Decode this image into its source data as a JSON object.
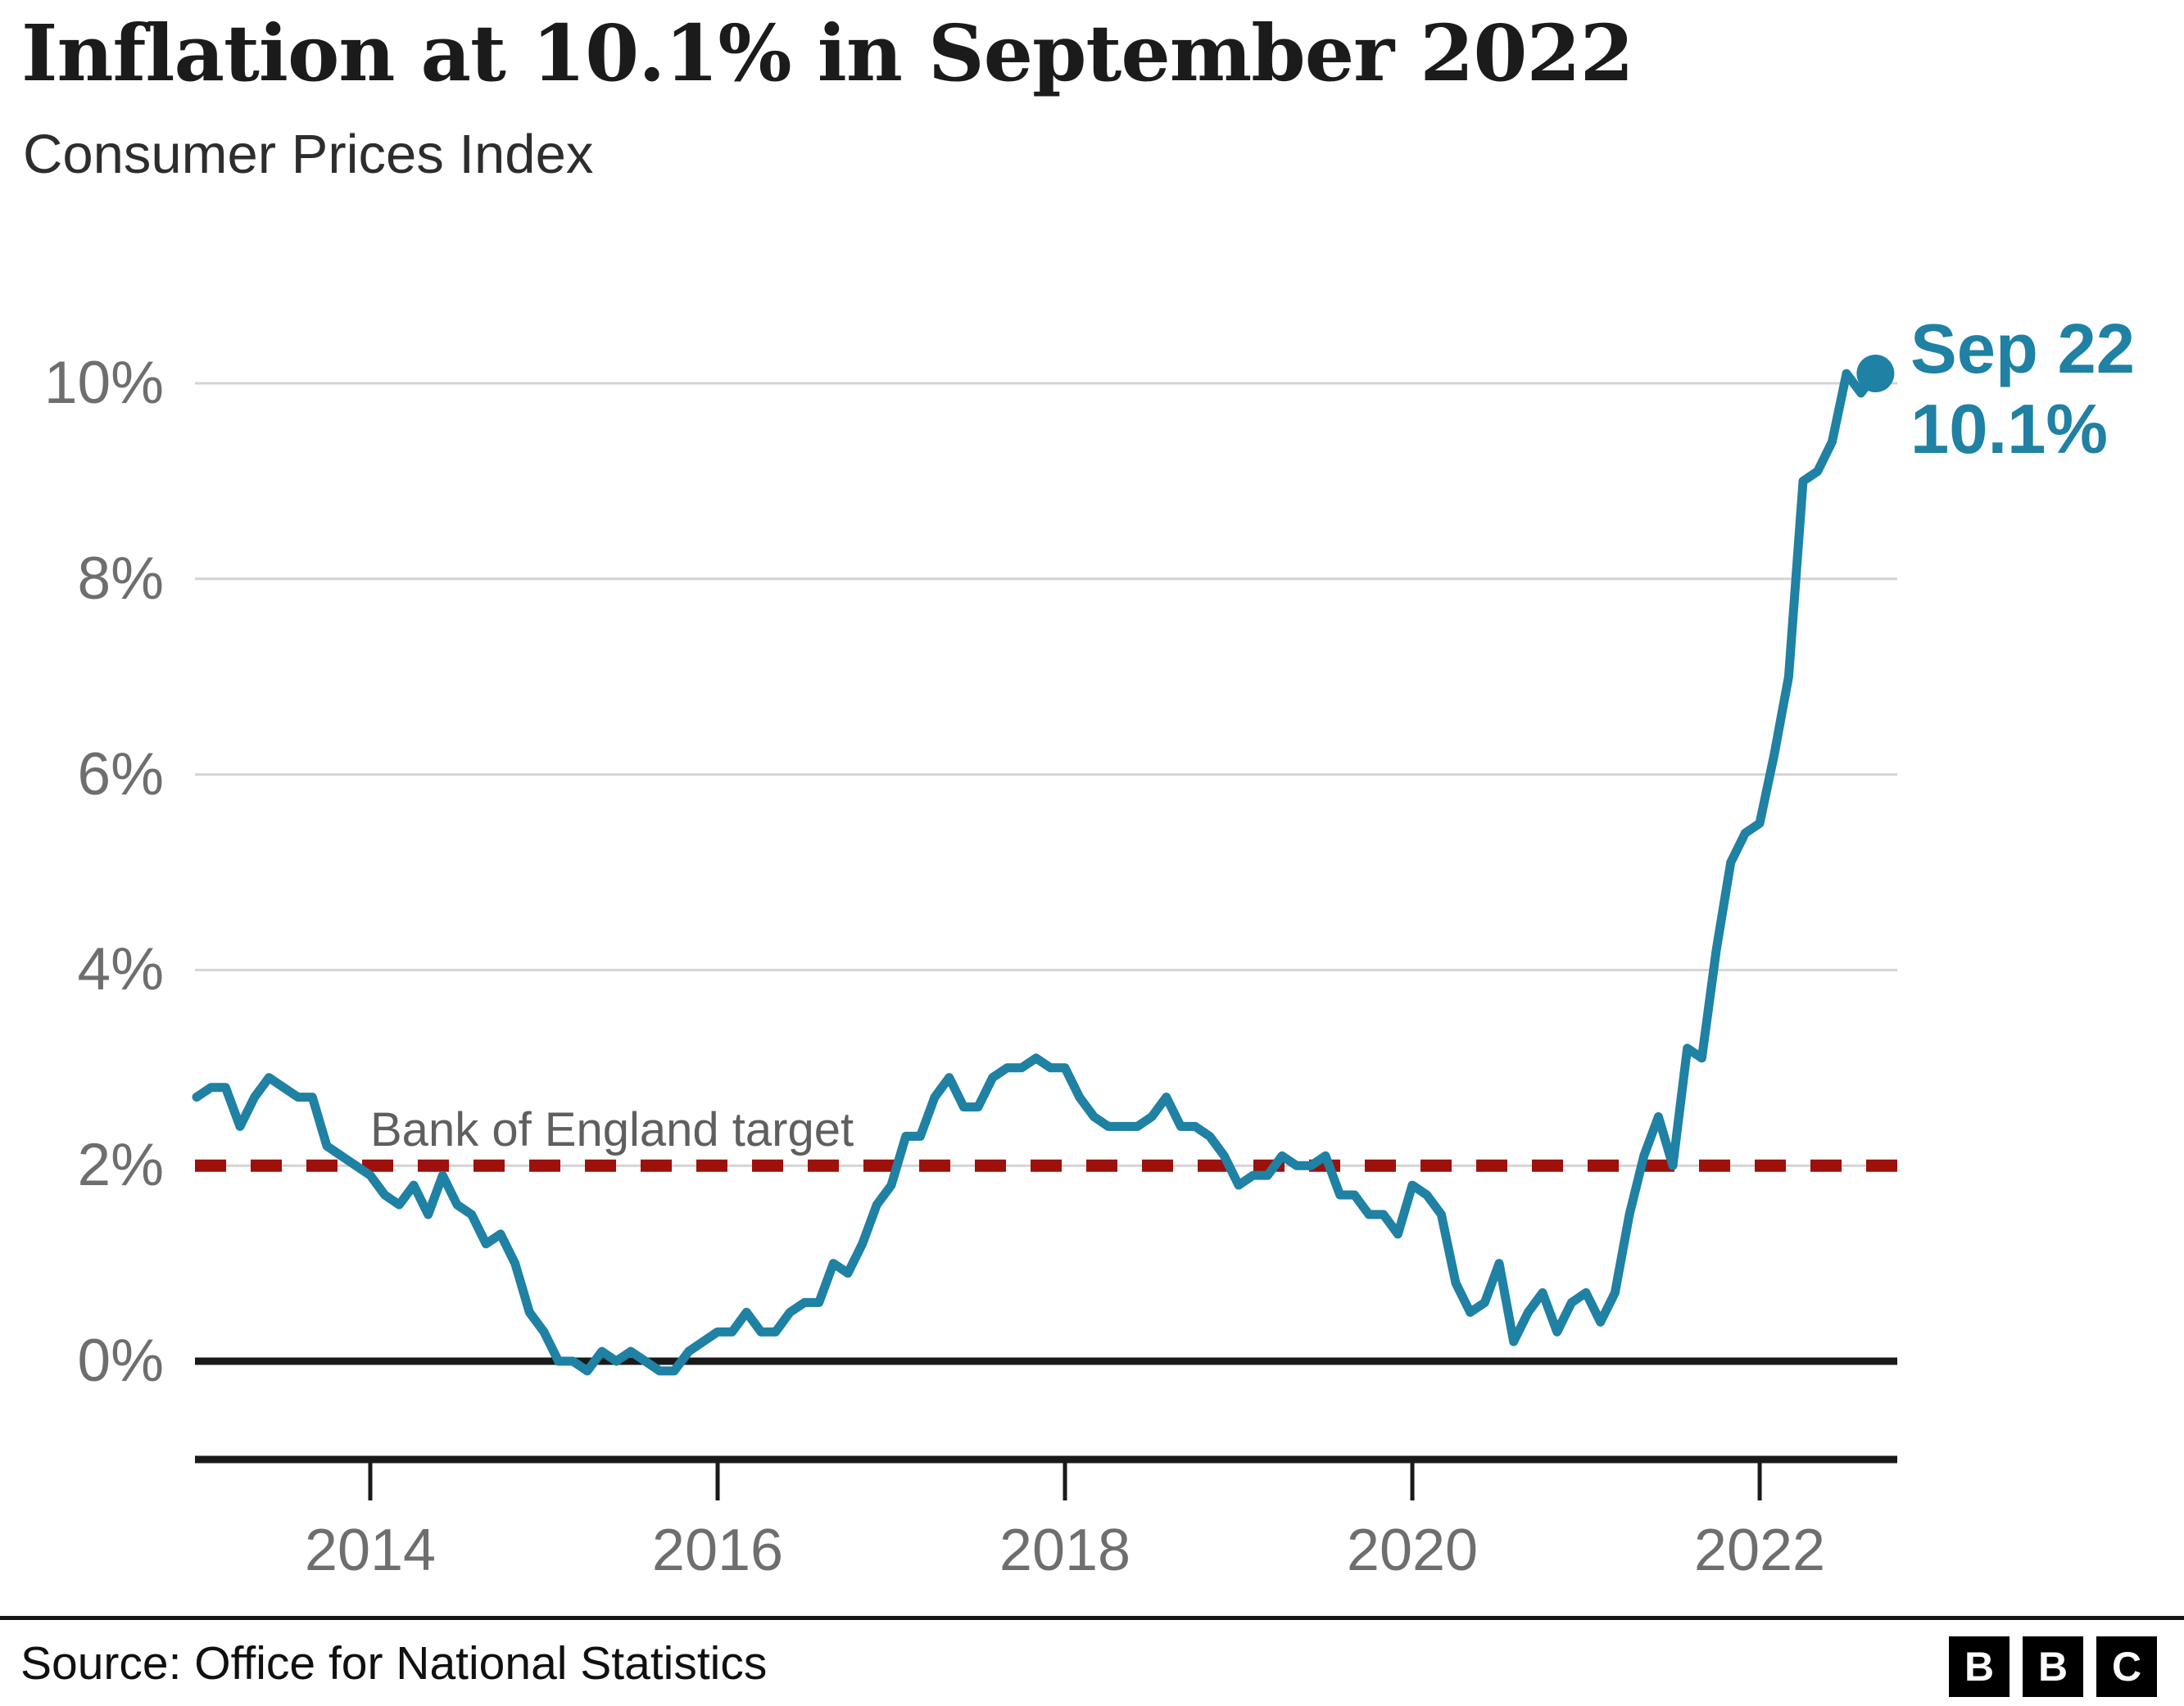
{
  "header": {
    "title": "Inflation at 10.1% in September 2022",
    "subtitle": "Consumer Prices Index"
  },
  "chart_data": {
    "type": "line",
    "title": "Inflation at 10.1% in September 2022",
    "subtitle": "Consumer Prices Index",
    "ylabel": "",
    "xlabel": "",
    "ylim": [
      -0.5,
      10.8
    ],
    "grid": "horizontal",
    "y_ticks": [
      "10%",
      "8%",
      "6%",
      "4%",
      "2%",
      "0%"
    ],
    "y_tick_values": [
      10,
      8,
      6,
      4,
      2,
      0
    ],
    "x_ticks": [
      "2014",
      "2016",
      "2018",
      "2020",
      "2022"
    ],
    "x_tick_years": [
      2014,
      2016,
      2018,
      2020,
      2022
    ],
    "series": [
      {
        "name": "Consumer Prices Index annual rate",
        "color": "#1f81a3",
        "start_year": 2013,
        "start_month": 1,
        "frequency": "monthly",
        "values": [
          2.7,
          2.8,
          2.8,
          2.4,
          2.7,
          2.9,
          2.8,
          2.7,
          2.7,
          2.2,
          2.1,
          2.0,
          1.9,
          1.7,
          1.6,
          1.8,
          1.5,
          1.9,
          1.6,
          1.5,
          1.2,
          1.3,
          1.0,
          0.5,
          0.3,
          0.0,
          0.0,
          -0.1,
          0.1,
          0.0,
          0.1,
          0.0,
          -0.1,
          -0.1,
          0.1,
          0.2,
          0.3,
          0.3,
          0.5,
          0.3,
          0.3,
          0.5,
          0.6,
          0.6,
          1.0,
          0.9,
          1.2,
          1.6,
          1.8,
          2.3,
          2.3,
          2.7,
          2.9,
          2.6,
          2.6,
          2.9,
          3.0,
          3.0,
          3.1,
          3.0,
          3.0,
          2.7,
          2.5,
          2.4,
          2.4,
          2.4,
          2.5,
          2.7,
          2.4,
          2.4,
          2.3,
          2.1,
          1.8,
          1.9,
          1.9,
          2.1,
          2.0,
          2.0,
          2.1,
          1.7,
          1.7,
          1.5,
          1.5,
          1.3,
          1.8,
          1.7,
          1.5,
          0.8,
          0.5,
          0.6,
          1.0,
          0.2,
          0.5,
          0.7,
          0.3,
          0.6,
          0.7,
          0.4,
          0.7,
          1.5,
          2.1,
          2.5,
          2.0,
          3.2,
          3.1,
          4.2,
          5.1,
          5.4,
          5.5,
          6.2,
          7.0,
          9.0,
          9.1,
          9.4,
          10.1,
          9.9,
          10.1
        ]
      }
    ],
    "target_line": {
      "label": "Bank of England target",
      "value": 2,
      "color": "#9d100b",
      "style": "dashed"
    },
    "annotation": {
      "line1": "Sep 22",
      "line2": "10.1%",
      "point_value": 10.1,
      "point_label": "Sep 2022"
    },
    "colors": {
      "line": "#1f81a3",
      "target": "#9d100b",
      "gridline": "#d4d4d4",
      "zero_line": "#1a1a1a",
      "axis": "#1a1a1a",
      "tick_text": "#6e6e6e"
    },
    "legend": "none"
  },
  "footer": {
    "source": "Source: Office for National Statistics",
    "logo": {
      "letters": [
        "B",
        "B",
        "C"
      ]
    }
  }
}
